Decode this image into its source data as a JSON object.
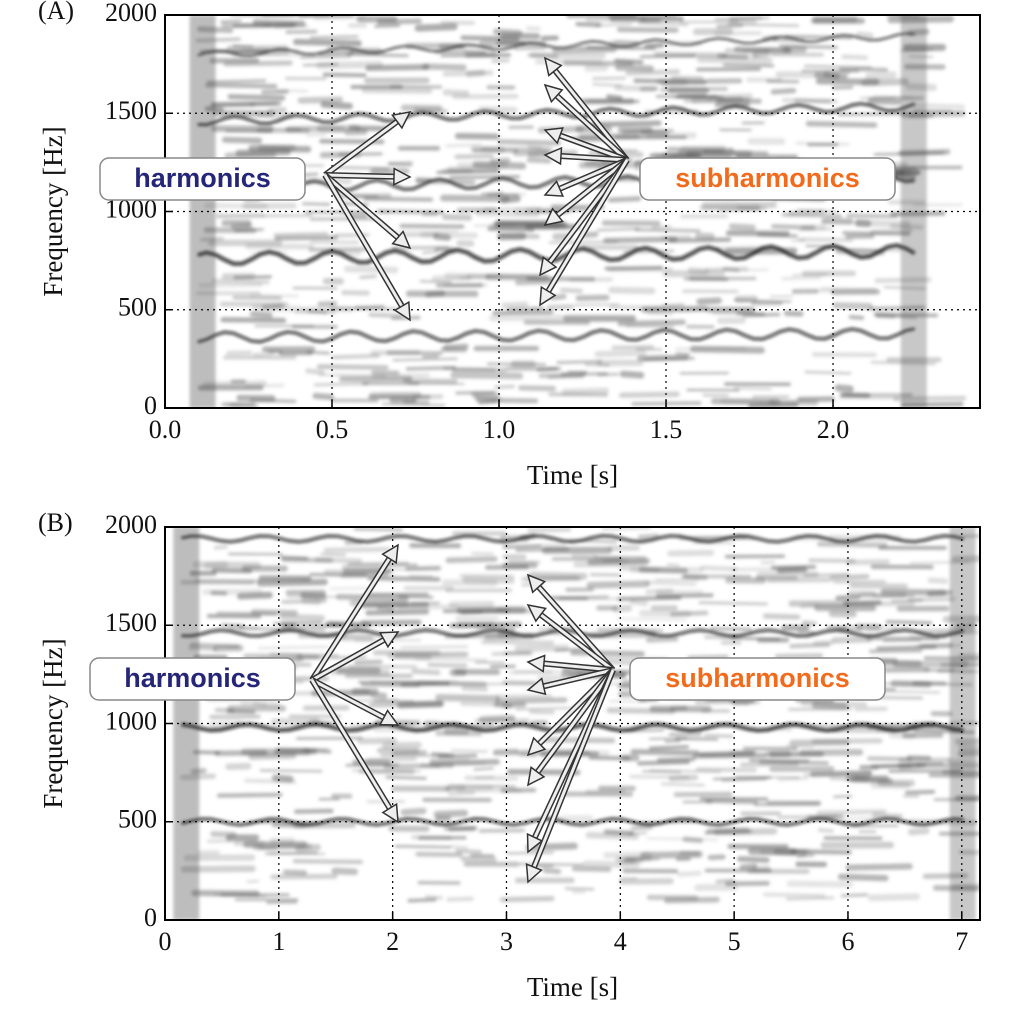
{
  "chart_data": [
    {
      "type": "spectrogram",
      "panel_label": "(A)",
      "xlabel": "Time [s]",
      "ylabel": "Frequency [Hz]",
      "xlim": [
        0,
        2.44
      ],
      "ylim": [
        0,
        2000
      ],
      "xticks": [
        {
          "value": 0,
          "label": "0.0"
        },
        0.5,
        {
          "value": 1,
          "label": "1.0"
        },
        1.5,
        {
          "value": 2,
          "label": "2.0"
        }
      ],
      "yticks": [
        0,
        500,
        1000,
        1500,
        2000
      ],
      "grid": true,
      "annotations": [
        {
          "text": "harmonics",
          "color": "#262678"
        },
        {
          "text": "subharmonics",
          "color": "#f26b1d"
        }
      ]
    },
    {
      "type": "spectrogram",
      "panel_label": "(B)",
      "xlabel": "Time [s]",
      "ylabel": "Frequency [Hz]",
      "xlim": [
        0,
        7.16
      ],
      "ylim": [
        0,
        2000
      ],
      "xticks": [
        0,
        1,
        2,
        3,
        4,
        5,
        6,
        7
      ],
      "yticks": [
        0,
        500,
        1000,
        1500,
        2000
      ],
      "grid": true,
      "annotations": [
        {
          "text": "harmonics",
          "color": "#262678"
        },
        {
          "text": "subharmonics",
          "color": "#f26b1d"
        }
      ]
    }
  ]
}
